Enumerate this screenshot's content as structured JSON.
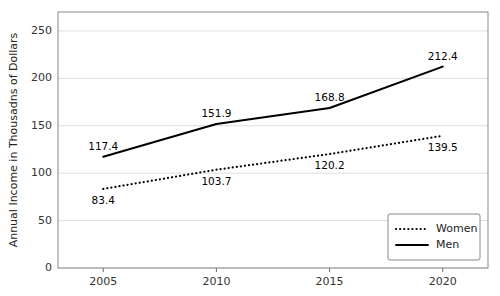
{
  "chart_data": {
    "type": "line",
    "y_label": "Annual Income in Thousadns of Dollars",
    "x": [
      2005,
      2010,
      2015,
      2020
    ],
    "series": [
      {
        "name": "Women",
        "color": "#000000",
        "line_style": "dotted",
        "values": [
          83.4,
          103.7,
          120.2,
          139.5
        ]
      },
      {
        "name": "Men",
        "color": "#000000",
        "line_style": "solid",
        "values": [
          117.4,
          151.9,
          168.8,
          212.4
        ]
      }
    ],
    "xlim": [
      2003,
      2022
    ],
    "xticks": [
      2005,
      2010,
      2015,
      2020
    ],
    "ylim": [
      0,
      270
    ],
    "yticks": [
      0,
      50,
      100,
      150,
      200,
      250
    ],
    "grid": true,
    "legend": "lower right",
    "data_labels": true
  }
}
